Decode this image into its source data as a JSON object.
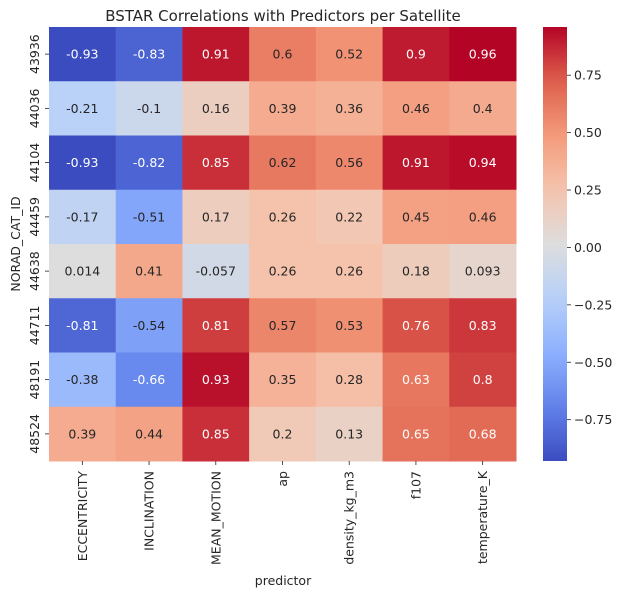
{
  "chart_data": {
    "type": "heatmap",
    "title": "BSTAR Correlations with Predictors per Satellite",
    "xlabel": "predictor",
    "ylabel": "NORAD_CAT_ID",
    "columns": [
      "ECCENTRICITY",
      "INCLINATION",
      "MEAN_MOTION",
      "ap",
      "density_kg_m3",
      "f107",
      "temperature_K"
    ],
    "rows": [
      "43936",
      "44036",
      "44104",
      "44459",
      "44638",
      "44711",
      "48191",
      "48524"
    ],
    "values": [
      [
        -0.93,
        -0.83,
        0.91,
        0.6,
        0.52,
        0.9,
        0.96
      ],
      [
        -0.21,
        -0.1,
        0.16,
        0.39,
        0.36,
        0.46,
        0.4
      ],
      [
        -0.93,
        -0.82,
        0.85,
        0.62,
        0.56,
        0.91,
        0.94
      ],
      [
        -0.17,
        -0.51,
        0.17,
        0.26,
        0.22,
        0.45,
        0.46
      ],
      [
        0.014,
        0.41,
        -0.057,
        0.26,
        0.26,
        0.18,
        0.093
      ],
      [
        -0.81,
        -0.54,
        0.81,
        0.57,
        0.53,
        0.76,
        0.83
      ],
      [
        -0.38,
        -0.66,
        0.93,
        0.35,
        0.28,
        0.63,
        0.8
      ],
      [
        0.39,
        0.44,
        0.85,
        0.2,
        0.13,
        0.65,
        0.68
      ]
    ],
    "labels": [
      [
        "-0.93",
        "-0.83",
        "0.91",
        "0.6",
        "0.52",
        "0.9",
        "0.96"
      ],
      [
        "-0.21",
        "-0.1",
        "0.16",
        "0.39",
        "0.36",
        "0.46",
        "0.4"
      ],
      [
        "-0.93",
        "-0.82",
        "0.85",
        "0.62",
        "0.56",
        "0.91",
        "0.94"
      ],
      [
        "-0.17",
        "-0.51",
        "0.17",
        "0.26",
        "0.22",
        "0.45",
        "0.46"
      ],
      [
        "0.014",
        "0.41",
        "-0.057",
        "0.26",
        "0.26",
        "0.18",
        "0.093"
      ],
      [
        "-0.81",
        "-0.54",
        "0.81",
        "0.57",
        "0.53",
        "0.76",
        "0.83"
      ],
      [
        "-0.38",
        "-0.66",
        "0.93",
        "0.35",
        "0.28",
        "0.63",
        "0.8"
      ],
      [
        "0.39",
        "0.44",
        "0.85",
        "0.2",
        "0.13",
        "0.65",
        "0.68"
      ]
    ],
    "colormap": "coolwarm",
    "vmin": -0.93,
    "vmax": 0.96,
    "colorbar_ticks": [
      0.75,
      0.5,
      0.25,
      0.0,
      -0.25,
      -0.5,
      -0.75
    ],
    "colorbar_tick_labels": [
      "0.75",
      "0.50",
      "0.25",
      "0.00",
      "−0.25",
      "−0.50",
      "−0.75"
    ]
  }
}
